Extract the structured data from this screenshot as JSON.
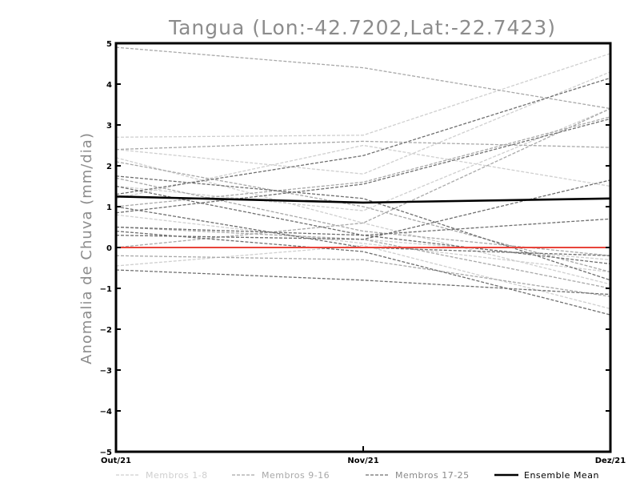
{
  "chart_data": {
    "type": "line",
    "title": "Tangua (Lon:-42.7202,Lat:-22.7423)",
    "xlabel": "",
    "ylabel": "Anomalia de Chuva (mm/dia)",
    "categories": [
      "Out/21",
      "Nov/21",
      "Dez/21"
    ],
    "ylim": [
      -5,
      5
    ],
    "yticks": [
      "-5",
      "-4",
      "-3",
      "-2",
      "-1",
      "0",
      "1",
      "2",
      "3",
      "4",
      "5"
    ],
    "reference_line": {
      "value": 0,
      "color": "#e8433a"
    },
    "series_groups": [
      {
        "name": "Membros 1-8",
        "color": "#cfcfcf",
        "members": [
          [
            2.7,
            2.75,
            4.75
          ],
          [
            2.4,
            1.8,
            4.3
          ],
          [
            1.5,
            0.9,
            3.4
          ],
          [
            0.8,
            0.1,
            -0.6
          ],
          [
            0.3,
            0.2,
            -0.3
          ],
          [
            -0.45,
            0.05,
            -1.5
          ],
          [
            2.2,
            0.6,
            -0.9
          ],
          [
            1.2,
            2.5,
            1.5
          ]
        ]
      },
      {
        "name": "Membros 9-16",
        "color": "#a8a8a8",
        "members": [
          [
            4.9,
            4.4,
            3.4
          ],
          [
            2.4,
            2.6,
            2.45
          ],
          [
            2.1,
            1.0,
            -0.6
          ],
          [
            1.7,
            0.4,
            -0.2
          ],
          [
            0.5,
            0.2,
            -1.0
          ],
          [
            0.0,
            0.6,
            3.4
          ],
          [
            -0.2,
            -0.3,
            -1.2
          ],
          [
            1.0,
            1.6,
            3.2
          ]
        ]
      },
      {
        "name": "Membros 17-25",
        "color": "#6e6e6e",
        "members": [
          [
            1.75,
            1.2,
            -0.8
          ],
          [
            1.5,
            0.3,
            -0.4
          ],
          [
            1.3,
            2.25,
            4.15
          ],
          [
            0.5,
            0.3,
            0.7
          ],
          [
            0.4,
            -0.1,
            -1.65
          ],
          [
            -0.55,
            -0.8,
            -1.15
          ],
          [
            0.3,
            0.2,
            1.65
          ],
          [
            1.0,
            0.0,
            -0.2
          ],
          [
            0.85,
            1.55,
            3.15
          ]
        ]
      }
    ],
    "ensemble_mean": {
      "name": "Ensemble Mean",
      "color": "#000000",
      "values": [
        1.25,
        1.1,
        1.2
      ]
    },
    "legend": {
      "position": "bottom",
      "entries": [
        "Membros 1-8",
        "Membros 9-16",
        "Membros 17-25",
        "Ensemble Mean"
      ]
    },
    "grid": false
  }
}
